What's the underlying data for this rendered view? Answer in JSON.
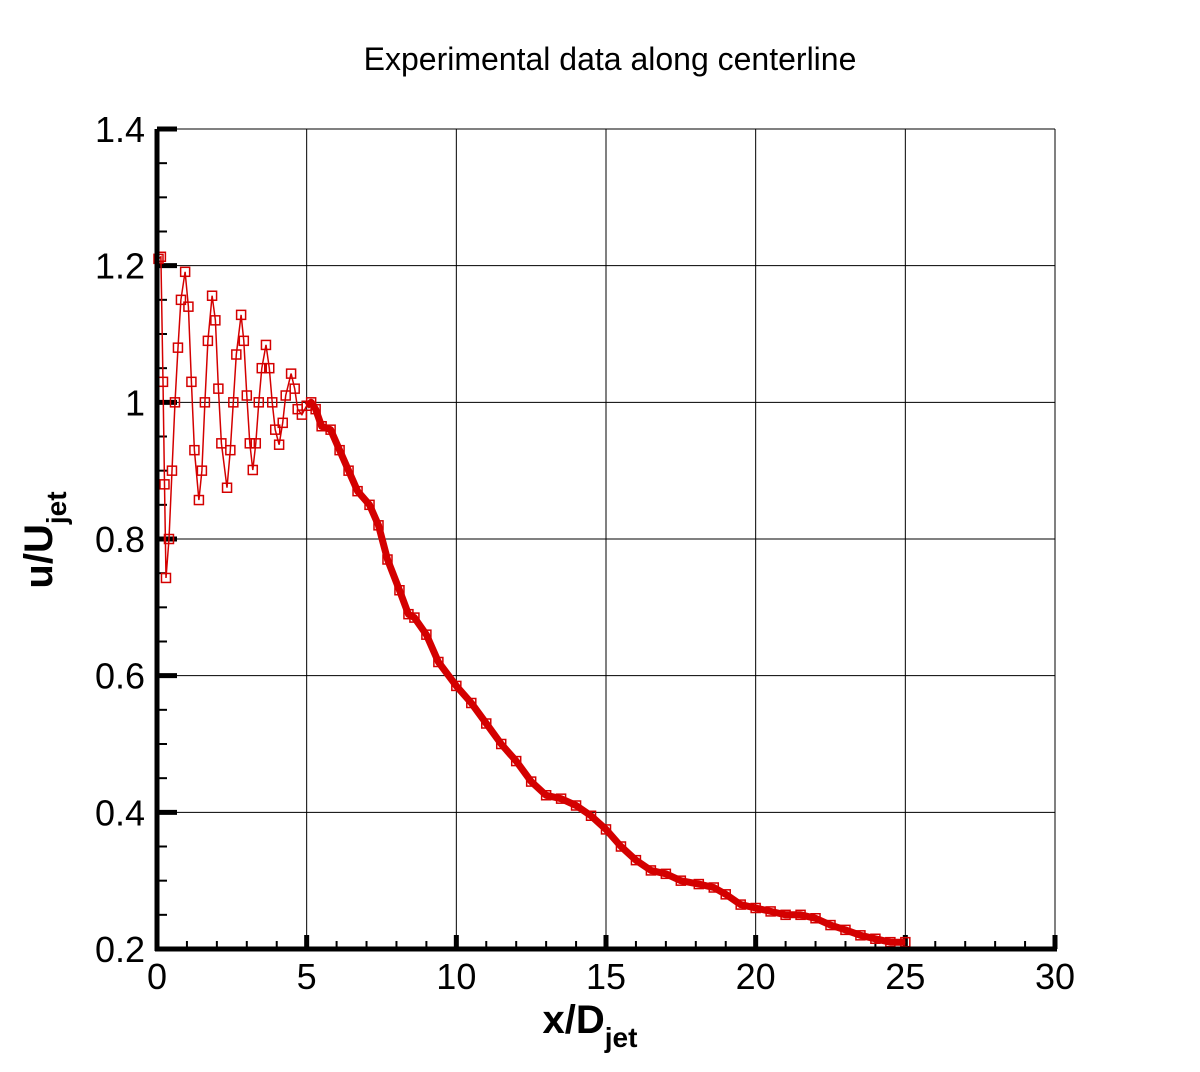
{
  "chart_data": {
    "type": "line",
    "title": "Experimental data along centerline",
    "xlabel": "x/D",
    "xlabel_sub": "jet",
    "ylabel": "u/U",
    "ylabel_sub": "jet",
    "xlim": [
      0,
      30
    ],
    "ylim": [
      0.2,
      1.4
    ],
    "xticks": [
      "0",
      "5",
      "10",
      "15",
      "20",
      "25",
      "30"
    ],
    "yticks": [
      "0.2",
      "0.4",
      "0.6",
      "0.8",
      "1",
      "1.2",
      "1.4"
    ],
    "grid": true,
    "marker": "open-square",
    "color": "#d40000",
    "x": [
      0.05,
      0.13,
      0.2,
      0.25,
      0.3,
      0.4,
      0.5,
      0.6,
      0.7,
      0.8,
      0.94,
      1.05,
      1.15,
      1.25,
      1.4,
      1.5,
      1.6,
      1.7,
      1.84,
      1.95,
      2.05,
      2.15,
      2.34,
      2.45,
      2.55,
      2.65,
      2.81,
      2.9,
      3.0,
      3.1,
      3.2,
      3.3,
      3.4,
      3.5,
      3.64,
      3.75,
      3.85,
      3.95,
      4.08,
      4.2,
      4.3,
      4.48,
      4.6,
      4.7,
      4.84,
      5.0,
      5.15,
      5.3,
      5.5,
      5.8,
      6.1,
      6.4,
      6.7,
      7.1,
      7.4,
      7.7,
      8.1,
      8.4,
      8.6,
      9.0,
      9.4,
      10.0,
      10.5,
      11.0,
      11.5,
      12.0,
      12.5,
      13.0,
      13.5,
      14.0,
      14.5,
      15.0,
      15.5,
      16.0,
      16.5,
      17.0,
      17.5,
      18.1,
      18.6,
      19.0,
      19.5,
      20.0,
      20.5,
      21.0,
      21.5,
      22.0,
      22.5,
      23.0,
      23.5,
      24.0,
      24.5,
      25.0
    ],
    "y": [
      1.21,
      1.213,
      1.03,
      0.88,
      0.743,
      0.8,
      0.9,
      1.0,
      1.08,
      1.15,
      1.191,
      1.14,
      1.03,
      0.93,
      0.857,
      0.9,
      1.0,
      1.09,
      1.156,
      1.12,
      1.02,
      0.94,
      0.875,
      0.93,
      1.0,
      1.07,
      1.128,
      1.09,
      1.01,
      0.94,
      0.901,
      0.94,
      1.0,
      1.05,
      1.084,
      1.05,
      1.0,
      0.96,
      0.938,
      0.97,
      1.01,
      1.042,
      1.02,
      0.99,
      0.982,
      0.995,
      1.0,
      0.99,
      0.965,
      0.96,
      0.93,
      0.9,
      0.87,
      0.85,
      0.82,
      0.77,
      0.725,
      0.69,
      0.685,
      0.66,
      0.62,
      0.585,
      0.56,
      0.53,
      0.5,
      0.475,
      0.445,
      0.425,
      0.42,
      0.41,
      0.395,
      0.375,
      0.35,
      0.33,
      0.315,
      0.31,
      0.3,
      0.295,
      0.29,
      0.28,
      0.265,
      0.26,
      0.255,
      0.25,
      0.25,
      0.245,
      0.235,
      0.228,
      0.22,
      0.215,
      0.21,
      0.21
    ]
  }
}
